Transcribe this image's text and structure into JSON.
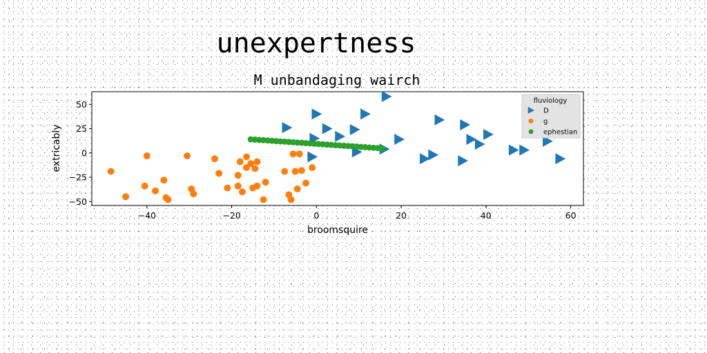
{
  "page_title": "unexpertness",
  "chart_data": {
    "type": "scatter",
    "title": "M unbandaging wairch",
    "xlabel": "broomsquire",
    "ylabel": "extricably",
    "xlim": [
      -53,
      63
    ],
    "ylim": [
      -54,
      63
    ],
    "xticks": [
      -40,
      -20,
      0,
      20,
      40,
      60
    ],
    "yticks": [
      -50,
      -25,
      0,
      25,
      50
    ],
    "grid": false,
    "legend": {
      "title": "fluviology",
      "placement": "top-right"
    },
    "series": [
      {
        "name": "D",
        "marker": "triangle-right",
        "color": "#1f77b4",
        "points": [
          [
            -7,
            26
          ],
          [
            0,
            40
          ],
          [
            2.5,
            25
          ],
          [
            5.5,
            17
          ],
          [
            9,
            24
          ],
          [
            11.5,
            40
          ],
          [
            16.5,
            58
          ],
          [
            19.5,
            14
          ],
          [
            -0.5,
            15
          ],
          [
            -1,
            -4
          ],
          [
            9.5,
            1
          ],
          [
            16,
            4
          ],
          [
            25.5,
            -6
          ],
          [
            27.5,
            -2
          ],
          [
            29,
            34
          ],
          [
            35,
            29
          ],
          [
            36.5,
            14
          ],
          [
            38.5,
            9
          ],
          [
            40.5,
            19
          ],
          [
            34.5,
            -8
          ],
          [
            46.5,
            3
          ],
          [
            49,
            3
          ],
          [
            54.5,
            12
          ],
          [
            57.5,
            -6
          ]
        ]
      },
      {
        "name": "g",
        "marker": "circle",
        "color": "#ff7f0e",
        "points": [
          [
            -48.5,
            -19
          ],
          [
            -45,
            -45
          ],
          [
            -40,
            -3
          ],
          [
            -40.5,
            -34
          ],
          [
            -38,
            -39
          ],
          [
            -36,
            -28
          ],
          [
            -35.5,
            -46
          ],
          [
            -35,
            -48
          ],
          [
            -30.5,
            -3
          ],
          [
            -29.5,
            -37
          ],
          [
            -29,
            -42
          ],
          [
            -24,
            -6
          ],
          [
            -23,
            -21
          ],
          [
            -21,
            -36
          ],
          [
            -18.5,
            -23
          ],
          [
            -18.5,
            -34
          ],
          [
            -18,
            -9
          ],
          [
            -17.5,
            -40
          ],
          [
            -16.5,
            -4
          ],
          [
            -16.5,
            -15
          ],
          [
            -15.5,
            -11
          ],
          [
            -15,
            -36
          ],
          [
            -14.5,
            -16
          ],
          [
            -14,
            -34
          ],
          [
            -14,
            -9
          ],
          [
            -12.5,
            -48
          ],
          [
            -12,
            -30
          ],
          [
            -7.5,
            -19
          ],
          [
            -6.5,
            -43
          ],
          [
            -6,
            -48
          ],
          [
            -5.5,
            -1
          ],
          [
            -5,
            -19
          ],
          [
            -4.5,
            -37
          ],
          [
            -3.5,
            -18
          ],
          [
            -2.5,
            -31
          ],
          [
            -4,
            -1
          ],
          [
            -1,
            -15
          ]
        ]
      },
      {
        "name": "ephestian",
        "marker": "circle",
        "color": "#2ca02c",
        "points": [
          [
            -15.5,
            14
          ],
          [
            -14.5,
            13.7
          ],
          [
            -13.5,
            13.4
          ],
          [
            -12.5,
            13.1
          ],
          [
            -11.5,
            12.8
          ],
          [
            -10.5,
            12.5
          ],
          [
            -9.5,
            12.2
          ],
          [
            -8.5,
            11.9
          ],
          [
            -7.5,
            11.6
          ],
          [
            -6.5,
            11.3
          ],
          [
            -5.5,
            11
          ],
          [
            -4.5,
            10.7
          ],
          [
            -3.5,
            10.4
          ],
          [
            -2.5,
            10.1
          ],
          [
            -1.5,
            9.8
          ],
          [
            -0.5,
            9.5
          ],
          [
            0.5,
            9.2
          ],
          [
            1.5,
            8.9
          ],
          [
            2.5,
            8.6
          ],
          [
            3.5,
            8.3
          ],
          [
            4.5,
            8
          ],
          [
            5.5,
            7.7
          ],
          [
            6.5,
            7.4
          ],
          [
            7.5,
            7.1
          ],
          [
            8.5,
            6.8
          ],
          [
            9.5,
            6.5
          ],
          [
            10.5,
            6.2
          ],
          [
            11.5,
            5.9
          ],
          [
            12.5,
            5.6
          ],
          [
            13.5,
            5.3
          ],
          [
            14.5,
            5
          ],
          [
            15.5,
            4.7
          ]
        ]
      }
    ]
  }
}
